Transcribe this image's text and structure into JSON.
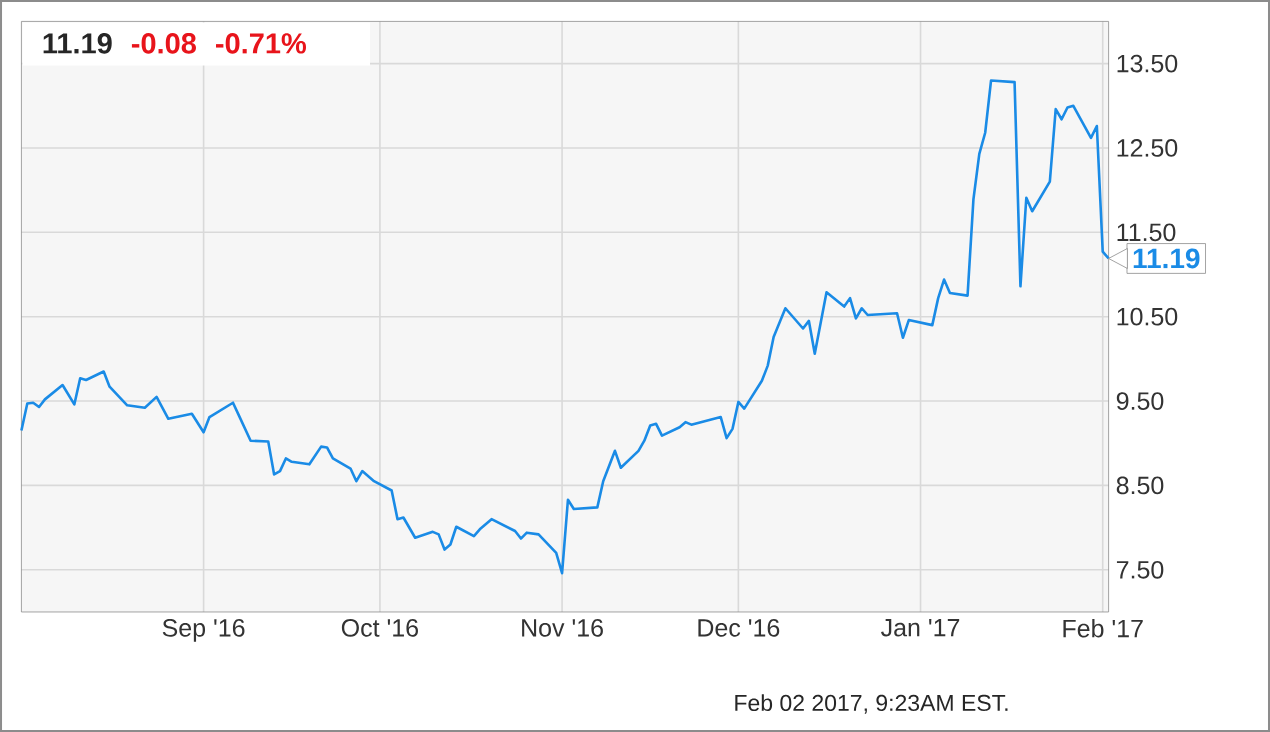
{
  "chart_data": {
    "type": "line",
    "x": [
      "2016-08-01",
      "2016-08-02",
      "2016-08-03",
      "2016-08-04",
      "2016-08-05",
      "2016-08-08",
      "2016-08-10",
      "2016-08-11",
      "2016-08-12",
      "2016-08-15",
      "2016-08-16",
      "2016-08-19",
      "2016-08-22",
      "2016-08-24",
      "2016-08-26",
      "2016-08-30",
      "2016-09-01",
      "2016-09-02",
      "2016-09-06",
      "2016-09-07",
      "2016-09-09",
      "2016-09-12",
      "2016-09-13",
      "2016-09-14",
      "2016-09-15",
      "2016-09-16",
      "2016-09-19",
      "2016-09-21",
      "2016-09-22",
      "2016-09-23",
      "2016-09-26",
      "2016-09-27",
      "2016-09-28",
      "2016-09-30",
      "2016-10-03",
      "2016-10-04",
      "2016-10-05",
      "2016-10-07",
      "2016-10-10",
      "2016-10-11",
      "2016-10-12",
      "2016-10-13",
      "2016-10-14",
      "2016-10-17",
      "2016-10-18",
      "2016-10-20",
      "2016-10-24",
      "2016-10-25",
      "2016-10-26",
      "2016-10-28",
      "2016-10-31",
      "2016-11-01",
      "2016-11-02",
      "2016-11-03",
      "2016-11-07",
      "2016-11-08",
      "2016-11-10",
      "2016-11-11",
      "2016-11-14",
      "2016-11-15",
      "2016-11-16",
      "2016-11-17",
      "2016-11-18",
      "2016-11-21",
      "2016-11-22",
      "2016-11-23",
      "2016-11-28",
      "2016-11-29",
      "2016-11-30",
      "2016-12-01",
      "2016-12-02",
      "2016-12-05",
      "2016-12-06",
      "2016-12-07",
      "2016-12-09",
      "2016-12-12",
      "2016-12-13",
      "2016-12-14",
      "2016-12-16",
      "2016-12-19",
      "2016-12-20",
      "2016-12-21",
      "2016-12-22",
      "2016-12-23",
      "2016-12-28",
      "2016-12-29",
      "2016-12-30",
      "2017-01-03",
      "2017-01-04",
      "2017-01-05",
      "2017-01-06",
      "2017-01-09",
      "2017-01-10",
      "2017-01-11",
      "2017-01-12",
      "2017-01-13",
      "2017-01-17",
      "2017-01-18",
      "2017-01-19",
      "2017-01-20",
      "2017-01-23",
      "2017-01-24",
      "2017-01-25",
      "2017-01-26",
      "2017-01-27",
      "2017-01-30",
      "2017-01-31",
      "2017-02-01",
      "2017-02-02"
    ],
    "series": [
      {
        "color": "#1a8be6",
        "values": [
          9.15,
          9.47,
          9.48,
          9.43,
          9.52,
          9.69,
          9.46,
          9.77,
          9.75,
          9.85,
          9.67,
          9.45,
          9.42,
          9.55,
          9.29,
          9.35,
          9.13,
          9.31,
          9.48,
          9.33,
          9.03,
          9.02,
          8.63,
          8.67,
          8.82,
          8.78,
          8.75,
          8.96,
          8.95,
          8.82,
          8.7,
          8.55,
          8.67,
          8.55,
          8.44,
          8.1,
          8.12,
          7.88,
          7.95,
          7.92,
          7.74,
          7.8,
          8.01,
          7.9,
          7.98,
          8.1,
          7.96,
          7.87,
          7.94,
          7.92,
          7.7,
          7.46,
          8.33,
          8.22,
          8.24,
          8.55,
          8.91,
          8.71,
          8.91,
          9.03,
          9.21,
          9.23,
          9.09,
          9.19,
          9.25,
          9.22,
          9.31,
          9.06,
          9.17,
          9.49,
          9.41,
          9.74,
          9.92,
          10.26,
          10.6,
          10.36,
          10.45,
          10.06,
          10.79,
          10.62,
          10.72,
          10.48,
          10.6,
          10.52,
          10.54,
          10.25,
          10.46,
          10.4,
          10.72,
          10.94,
          10.78,
          10.75,
          11.89,
          12.43,
          12.68,
          13.3,
          13.28,
          10.86,
          11.91,
          11.75,
          12.1,
          12.96,
          12.84,
          12.98,
          13.0,
          12.62,
          12.76,
          11.27,
          11.19
        ]
      }
    ],
    "xlim": [
      "2016-08-01",
      "2017-02-02"
    ],
    "ylim": [
      7,
      14
    ],
    "xticks": [
      {
        "value": "2016-09-01",
        "label": "Sep '16"
      },
      {
        "value": "2016-10-01",
        "label": "Oct '16"
      },
      {
        "value": "2016-11-01",
        "label": "Nov '16"
      },
      {
        "value": "2016-12-01",
        "label": "Dec '16"
      },
      {
        "value": "2017-01-01",
        "label": "Jan '17"
      },
      {
        "value": "2017-02-01",
        "label": "Feb '17"
      }
    ],
    "yticks": [
      {
        "value": 7.5,
        "label": "7.50"
      },
      {
        "value": 8.5,
        "label": "8.50"
      },
      {
        "value": 9.5,
        "label": "9.50"
      },
      {
        "value": 10.5,
        "label": "10.50"
      },
      {
        "value": 11.5,
        "label": "11.50"
      },
      {
        "value": 12.5,
        "label": "12.50"
      },
      {
        "value": 13.5,
        "label": "13.50"
      }
    ],
    "grid": true,
    "annotations": [
      "11.19",
      "-0.08",
      "-0.71%",
      {
        "text": "11.19",
        "x": "2017-02-02",
        "y": 11.19
      },
      "Feb 02 2017, 9:23AM EST."
    ]
  }
}
